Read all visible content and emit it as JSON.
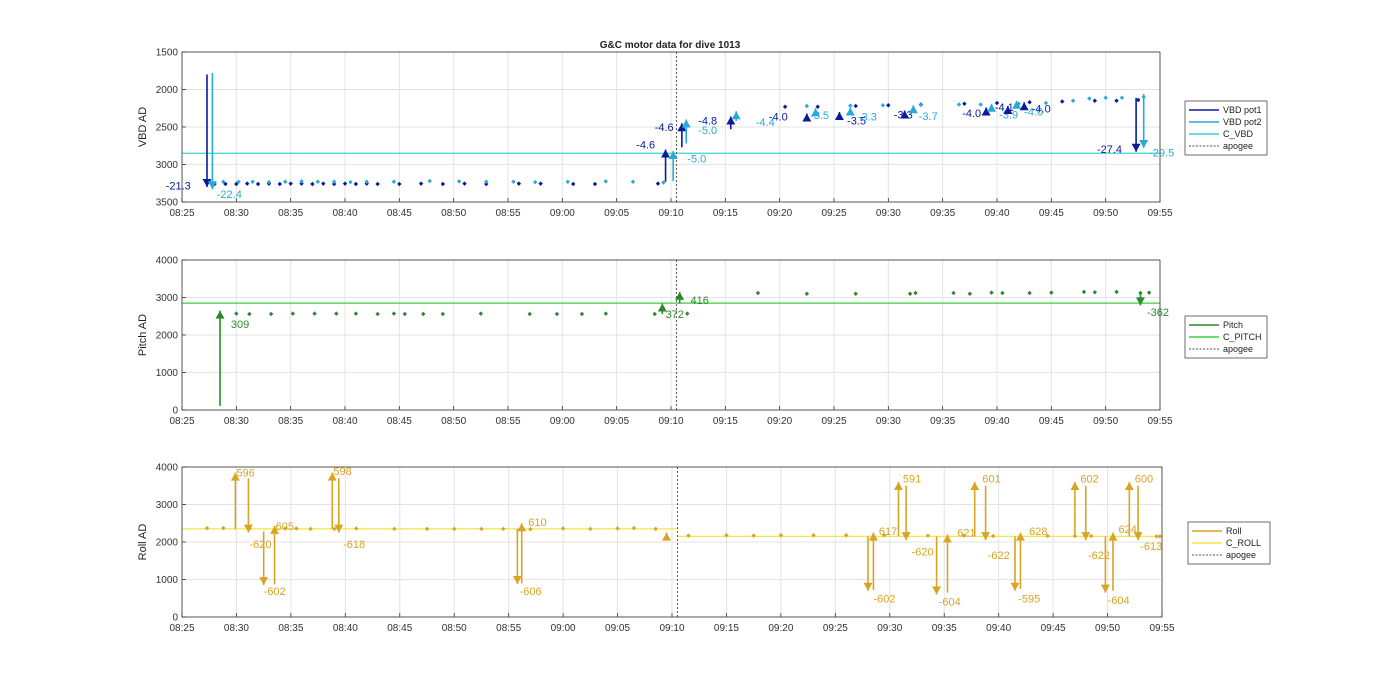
{
  "title": "G&C motor data for dive 1013",
  "x_ticks": [
    "08:25",
    "08:30",
    "08:35",
    "08:40",
    "08:45",
    "08:50",
    "08:55",
    "09:00",
    "09:05",
    "09:10",
    "09:15",
    "09:20",
    "09:25",
    "09:30",
    "09:35",
    "09:40",
    "09:45",
    "09:50",
    "09:55"
  ],
  "colors": {
    "vbd_pot1": "#0a1a9e",
    "vbd_pot2": "#29a9d8",
    "c_vbd": "#3fd2d8",
    "pitch": "#2a8a2a",
    "c_pitch": "#3ccf3c",
    "roll": "#d9a423",
    "c_roll": "#f0e64a",
    "apogee": "#555555"
  },
  "chart_data": [
    {
      "type": "scatter",
      "name": "vbd",
      "ylabel": "VBD AD",
      "ylim": [
        3500,
        1500
      ],
      "yticks": [
        1500,
        2000,
        2500,
        3000,
        3500
      ],
      "x_unit": "minutes after 08:25",
      "xlim": [
        0,
        90
      ],
      "grid": true,
      "legend": [
        "VBD pot1",
        "VBD pot2",
        "C_VBD",
        "apogee"
      ],
      "legend_placement": "outside-right",
      "apogee_x": 45.5,
      "reference_line": {
        "name": "C_VBD",
        "y": 2850
      },
      "series": [
        {
          "name": "VBD pot1",
          "x": [
            3,
            4,
            5,
            6,
            7,
            8,
            9,
            10,
            11,
            12,
            13,
            14,
            15,
            16,
            17,
            18,
            20,
            22,
            24,
            26,
            28,
            31,
            33,
            36,
            38,
            43.8,
            55.5,
            58.5,
            62,
            65,
            68,
            72,
            75,
            78,
            81,
            84,
            86,
            88
          ],
          "y": [
            3260,
            3260,
            3260,
            3255,
            3260,
            3255,
            3260,
            3255,
            3255,
            3260,
            3255,
            3260,
            3255,
            3260,
            3255,
            3260,
            3260,
            3255,
            3260,
            3255,
            3260,
            3255,
            3255,
            3260,
            3260,
            3255,
            2230,
            2230,
            2220,
            2210,
            2200,
            2190,
            2180,
            2170,
            2160,
            2150,
            2150,
            2140
          ]
        },
        {
          "name": "VBD pot2",
          "x": [
            3.8,
            5.2,
            6.5,
            8,
            9.5,
            11,
            12.5,
            14,
            15.5,
            17,
            19.5,
            22.8,
            25.5,
            28,
            30.5,
            32.5,
            35.5,
            39,
            41.5,
            44.3,
            57.5,
            61.5,
            64.5,
            68,
            71.5,
            73.5,
            77,
            79.5,
            82,
            83.5,
            85,
            86.5,
            88.5
          ],
          "y": [
            3230,
            3230,
            3230,
            3235,
            3230,
            3225,
            3230,
            3230,
            3235,
            3230,
            3230,
            3220,
            3225,
            3230,
            3230,
            3235,
            3230,
            3225,
            3230,
            3240,
            2220,
            2215,
            2210,
            2205,
            2200,
            2200,
            2190,
            2180,
            2150,
            2120,
            2110,
            2110,
            2100
          ]
        }
      ],
      "moves": [
        {
          "series": "VBD pot1",
          "x": 2.3,
          "from": 1800,
          "to": 3300,
          "label": "-21.3",
          "label_x": -1.5,
          "label_y": 3280
        },
        {
          "series": "VBD pot2",
          "x": 2.8,
          "from": 1780,
          "to": 3330,
          "label": "-22.4",
          "label_x": 3.2,
          "label_y": 3390
        },
        {
          "series": "VBD pot1",
          "x": 44.5,
          "from": 3230,
          "to": 2800,
          "label": "-4.6",
          "label_x": 41.8,
          "label_y": 2730
        },
        {
          "series": "VBD pot2",
          "x": 45.2,
          "from": 3220,
          "to": 2820,
          "label": "-5.0",
          "label_x": 46.5,
          "label_y": 2920
        },
        {
          "series": "VBD pot1",
          "x": 46.0,
          "from": 2770,
          "to": 2450,
          "label": "-4.6",
          "label_x": 43.5,
          "label_y": 2500
        },
        {
          "series": "VBD pot2",
          "x": 46.4,
          "from": 2720,
          "to": 2400,
          "label": "-5.0",
          "label_x": 47.5,
          "label_y": 2540
        },
        {
          "series": "VBD pot1",
          "x": 50.5,
          "from": 2530,
          "to": 2360,
          "label": "-4.8",
          "label_x": 47.5,
          "label_y": 2410
        },
        {
          "series": "VBD pot2",
          "x": 51.0,
          "from": 2420,
          "to": 2290,
          "label": "-4.4",
          "label_x": 52.8,
          "label_y": 2430
        },
        {
          "series": "VBD pot1",
          "x": 57.5,
          "from": 2380,
          "to": 2320,
          "label": "-4.0",
          "label_x": 54.0,
          "label_y": 2360
        },
        {
          "series": "VBD pot2",
          "x": 58.3,
          "from": 2310,
          "to": 2250,
          "label": "-3.5",
          "label_x": 57.8,
          "label_y": 2340
        },
        {
          "series": "VBD pot1",
          "x": 60.5,
          "from": 2370,
          "to": 2300,
          "label": "-3.5",
          "label_x": 61.2,
          "label_y": 2410
        },
        {
          "series": "VBD pot2",
          "x": 61.5,
          "from": 2300,
          "to": 2240,
          "label": "-3.3",
          "label_x": 62.2,
          "label_y": 2360
        },
        {
          "series": "VBD pot1",
          "x": 66.5,
          "from": 2340,
          "to": 2280,
          "label": "-3.3",
          "label_x": 65.5,
          "label_y": 2330
        },
        {
          "series": "VBD pot2",
          "x": 67.3,
          "from": 2270,
          "to": 2210,
          "label": "-3.7",
          "label_x": 67.8,
          "label_y": 2350
        },
        {
          "series": "VBD pot1",
          "x": 74.0,
          "from": 2310,
          "to": 2240,
          "label": "-4.0",
          "label_x": 71.8,
          "label_y": 2310
        },
        {
          "series": "VBD pot2",
          "x": 74.5,
          "from": 2250,
          "to": 2190,
          "label": "-3.9",
          "label_x": 75.2,
          "label_y": 2330
        },
        {
          "series": "VBD pot1",
          "x": 76.0,
          "from": 2290,
          "to": 2220,
          "label": "-4.1",
          "label_x": 74.8,
          "label_y": 2230
        },
        {
          "series": "VBD pot2",
          "x": 76.8,
          "from": 2230,
          "to": 2150,
          "label": "-4.0",
          "label_x": 77.5,
          "label_y": 2290
        },
        {
          "series": "VBD pot1",
          "x": 77.5,
          "from": 2250,
          "to": 2170,
          "label": "-4.0",
          "label_x": 78.2,
          "label_y": 2250
        },
        {
          "series": "VBD pot1",
          "x": 87.8,
          "from": 2110,
          "to": 2830,
          "label": "-27.4",
          "label_x": 84.2,
          "label_y": 2790
        },
        {
          "series": "VBD pot2",
          "x": 88.5,
          "from": 2060,
          "to": 2780,
          "label": "-29.5",
          "label_x": 89.0,
          "label_y": 2840
        }
      ]
    },
    {
      "type": "scatter",
      "name": "pitch",
      "ylabel": "Pitch AD",
      "ylim": [
        0,
        4000
      ],
      "yticks": [
        0,
        1000,
        2000,
        3000,
        4000
      ],
      "x_unit": "minutes after 08:25",
      "xlim": [
        0,
        90
      ],
      "grid": true,
      "legend": [
        "Pitch",
        "C_PITCH",
        "apogee"
      ],
      "legend_placement": "outside-right",
      "apogee_x": 45.5,
      "reference_line": {
        "name": "C_PITCH",
        "y": 2850
      },
      "series": [
        {
          "name": "Pitch",
          "x": [
            5,
            6.2,
            8.2,
            10.2,
            12.2,
            14.2,
            16,
            18,
            19.5,
            20.5,
            22.2,
            24,
            27.5,
            32,
            34.5,
            36.8,
            39,
            43.5,
            46.5,
            53,
            57.5,
            62,
            67,
            67.5,
            71,
            72.5,
            74.5,
            75.5,
            78,
            80,
            83,
            84,
            86,
            88.2,
            89
          ],
          "y": [
            2570,
            2560,
            2560,
            2570,
            2570,
            2570,
            2570,
            2560,
            2570,
            2560,
            2560,
            2560,
            2570,
            2560,
            2560,
            2560,
            2570,
            2560,
            2570,
            3120,
            3100,
            3100,
            3100,
            3120,
            3120,
            3100,
            3130,
            3120,
            3120,
            3130,
            3150,
            3140,
            3150,
            3120,
            3130
          ]
        }
      ],
      "moves": [
        {
          "series": "Pitch",
          "x": 3.5,
          "from": 110,
          "to": 2650,
          "label": "309",
          "label_x": 4.5,
          "label_y": 2300
        },
        {
          "series": "Pitch",
          "x": 44.2,
          "from": 2560,
          "to": 2840,
          "label": "372",
          "label_x": 44.5,
          "label_y": 2560
        },
        {
          "series": "Pitch",
          "x": 45.8,
          "from": 2840,
          "to": 3150,
          "label": "416",
          "label_x": 46.8,
          "label_y": 2930
        },
        {
          "series": "Pitch",
          "x": 88.2,
          "from": 3130,
          "to": 2790,
          "label": "-362",
          "label_x": 88.8,
          "label_y": 2620
        }
      ]
    },
    {
      "type": "scatter",
      "name": "roll",
      "ylabel": "Roll AD",
      "ylim": [
        0,
        4000
      ],
      "yticks": [
        0,
        1000,
        2000,
        3000,
        4000
      ],
      "x_unit": "minutes after 08:25",
      "xlim": [
        0,
        90
      ],
      "grid": true,
      "legend": [
        "Roll",
        "C_ROLL",
        "apogee"
      ],
      "legend_placement": "outside-right",
      "apogee_x": 45.5,
      "reference_line_segments": [
        {
          "name": "C_ROLL",
          "x0": 0,
          "x1": 45.5,
          "y": 2350
        },
        {
          "name": "C_ROLL",
          "x0": 45.5,
          "x1": 90,
          "y": 2150
        }
      ],
      "series": [
        {
          "name": "Roll",
          "x": [
            2.3,
            3.8,
            6.2,
            9.5,
            10.5,
            11.8,
            14,
            16,
            19.5,
            22.5,
            25,
            27.5,
            29.5,
            32,
            35,
            37.5,
            40,
            41.5,
            43.5,
            46.5,
            50,
            52.5,
            55,
            58,
            61,
            64.5,
            68.5,
            71.8,
            74.5,
            79.5,
            82,
            83.5,
            89.5,
            89.8
          ],
          "y": [
            2370,
            2370,
            2360,
            2360,
            2360,
            2350,
            2350,
            2360,
            2350,
            2350,
            2350,
            2350,
            2350,
            2340,
            2360,
            2350,
            2360,
            2370,
            2350,
            2170,
            2180,
            2170,
            2180,
            2180,
            2180,
            2180,
            2170,
            2170,
            2160,
            2160,
            2160,
            2160,
            2150,
            2150
          ]
        }
      ],
      "moves": [
        {
          "series": "Roll",
          "x": 4.9,
          "from": 2350,
          "to": 3850,
          "label": "596",
          "label_x": 5.0,
          "label_y": 3850
        },
        {
          "series": "Roll",
          "x": 6.1,
          "from": 3700,
          "to": 2250,
          "label": "-620",
          "label_x": 6.2,
          "label_y": 1950
        },
        {
          "series": "Roll",
          "x": 7.5,
          "from": 2280,
          "to": 850,
          "label": "-602",
          "label_x": 7.5,
          "label_y": 700
        },
        {
          "series": "Roll",
          "x": 8.5,
          "from": 870,
          "to": 2430,
          "label": "605",
          "label_x": 8.6,
          "label_y": 2430
        },
        {
          "series": "Roll",
          "x": 13.8,
          "from": 2350,
          "to": 3850,
          "label": "598",
          "label_x": 13.9,
          "label_y": 3900
        },
        {
          "series": "Roll",
          "x": 14.4,
          "from": 3700,
          "to": 2250,
          "label": "-618",
          "label_x": 14.8,
          "label_y": 1950
        },
        {
          "series": "Roll",
          "x": 30.8,
          "from": 2350,
          "to": 880,
          "label": "-606",
          "label_x": 31.0,
          "label_y": 700
        },
        {
          "series": "Roll",
          "x": 31.2,
          "from": 900,
          "to": 2500,
          "label": "610",
          "label_x": 31.8,
          "label_y": 2530
        },
        {
          "series": "Roll",
          "x": 44.5,
          "from": 2200,
          "to": 2250,
          "label": "",
          "label_x": 44.5,
          "label_y": 2250
        },
        {
          "series": "Roll",
          "x": 63.0,
          "from": 2150,
          "to": 700,
          "label": "-602",
          "label_x": 63.5,
          "label_y": 500
        },
        {
          "series": "Roll",
          "x": 63.5,
          "from": 720,
          "to": 2250,
          "label": "617",
          "label_x": 64.0,
          "label_y": 2300
        },
        {
          "series": "Roll",
          "x": 65.8,
          "from": 2150,
          "to": 3600,
          "label": "591",
          "label_x": 66.2,
          "label_y": 3700
        },
        {
          "series": "Roll",
          "x": 66.5,
          "from": 3500,
          "to": 2050,
          "label": "-620",
          "label_x": 67.0,
          "label_y": 1750
        },
        {
          "series": "Roll",
          "x": 69.3,
          "from": 2150,
          "to": 600,
          "label": "-604",
          "label_x": 69.5,
          "label_y": 420
        },
        {
          "series": "Roll",
          "x": 70.3,
          "from": 650,
          "to": 2200,
          "label": "621",
          "label_x": 71.2,
          "label_y": 2250
        },
        {
          "series": "Roll",
          "x": 72.8,
          "from": 2150,
          "to": 3600,
          "label": "601",
          "label_x": 73.5,
          "label_y": 3700
        },
        {
          "series": "Roll",
          "x": 73.8,
          "from": 3500,
          "to": 2050,
          "label": "-622",
          "label_x": 74.0,
          "label_y": 1650
        },
        {
          "series": "Roll",
          "x": 76.5,
          "from": 2150,
          "to": 700,
          "label": "-595",
          "label_x": 76.8,
          "label_y": 500
        },
        {
          "series": "Roll",
          "x": 77.0,
          "from": 750,
          "to": 2250,
          "label": "628",
          "label_x": 77.8,
          "label_y": 2300
        },
        {
          "series": "Roll",
          "x": 82.0,
          "from": 2150,
          "to": 3600,
          "label": "602",
          "label_x": 82.5,
          "label_y": 3700
        },
        {
          "series": "Roll",
          "x": 83.0,
          "from": 3500,
          "to": 2050,
          "label": "-622",
          "label_x": 83.2,
          "label_y": 1650
        },
        {
          "series": "Roll",
          "x": 84.8,
          "from": 2150,
          "to": 650,
          "label": "-604",
          "label_x": 85.0,
          "label_y": 450
        },
        {
          "series": "Roll",
          "x": 85.5,
          "from": 700,
          "to": 2250,
          "label": "624",
          "label_x": 86.0,
          "label_y": 2350
        },
        {
          "series": "Roll",
          "x": 87.0,
          "from": 2150,
          "to": 3600,
          "label": "600",
          "label_x": 87.5,
          "label_y": 3700
        },
        {
          "series": "Roll",
          "x": 87.8,
          "from": 3500,
          "to": 2050,
          "label": "-613",
          "label_x": 88.0,
          "label_y": 1900
        }
      ]
    }
  ]
}
